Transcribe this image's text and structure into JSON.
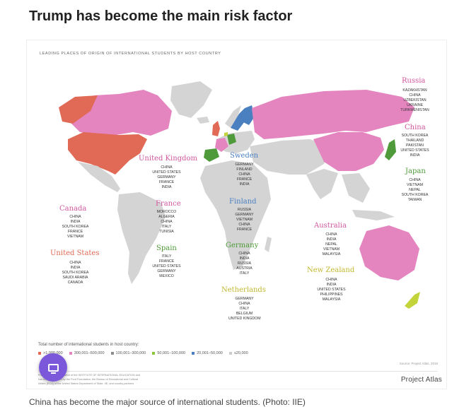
{
  "headline": "Trump has become the main risk factor",
  "figure": {
    "title": "LEADING PLACES OF ORIGIN OF INTERNATIONAL STUDENTS BY HOST COUNTRY",
    "source": "Source: Project Atlas, 2018",
    "logo": "Project Atlas",
    "footnote_lines": [
      "Project Atlas is an initiative of the INSTITUTE OF INTERNATIONAL EDUCATION and",
      "has been supported by the Ford Foundation, the Bureau of Educational and Cultural",
      "Affairs (ECA) of the United States Department of State, IIE, and country partners"
    ],
    "colors": {
      "c1": "#e06a55",
      "c2": "#e485c0",
      "c3": "#8c8c8c",
      "c4": "#8cc63e",
      "c5": "#4a7fc0",
      "c6": "#cccccc",
      "land": "#d4d4d4",
      "green": "#4f9a3a",
      "lime": "#c3d43a"
    }
  },
  "hosts": [
    {
      "name": "Russia",
      "color": "#e485c0",
      "origins": [
        "KAZAKHSTAN",
        "CHINA",
        "UZBEKISTAN",
        "UKRAINE",
        "TURKMENISTAN"
      ]
    },
    {
      "name": "China",
      "color": "#e485c0",
      "origins": [
        "SOUTH KOREA",
        "THAILAND",
        "PAKISTAN",
        "UNITED STATES",
        "INDIA"
      ]
    },
    {
      "name": "Japan",
      "color": "#4f9a3a",
      "origins": [
        "CHINA",
        "VIETNAM",
        "NEPAL",
        "SOUTH KOREA",
        "TAIWAN"
      ]
    },
    {
      "name": "United Kingdom",
      "color": "#e06a55",
      "origins": [
        "CHINA",
        "UNITED STATES",
        "GERMANY",
        "FRANCE",
        "INDIA"
      ]
    },
    {
      "name": "Sweden",
      "color": "#4a7fc0",
      "origins": [
        "GERMANY",
        "FINLAND",
        "CHINA",
        "FRANCE",
        "INDIA"
      ]
    },
    {
      "name": "Canada",
      "color": "#e485c0",
      "origins": [
        "CHINA",
        "INDIA",
        "SOUTH KOREA",
        "FRANCE",
        "VIETNAM"
      ]
    },
    {
      "name": "France",
      "color": "#e485c0",
      "origins": [
        "MOROCCO",
        "ALGERIA",
        "CHINA",
        "ITALY",
        "TUNISIA"
      ]
    },
    {
      "name": "Finland",
      "color": "#4a7fc0",
      "origins": [
        "RUSSIA",
        "GERMANY",
        "VIETNAM",
        "CHINA",
        "FRANCE"
      ]
    },
    {
      "name": "Australia",
      "color": "#e485c0",
      "origins": [
        "CHINA",
        "INDIA",
        "NEPAL",
        "VIETNAM",
        "MALAYSIA"
      ]
    },
    {
      "name": "Spain",
      "color": "#4f9a3a",
      "origins": [
        "ITALY",
        "FRANCE",
        "UNITED STATES",
        "GERMANY",
        "MEXICO"
      ]
    },
    {
      "name": "Germany",
      "color": "#4f9a3a",
      "origins": [
        "CHINA",
        "INDIA",
        "RUSSIA",
        "AUSTRIA",
        "ITALY"
      ]
    },
    {
      "name": "United States",
      "color": "#e06a55",
      "origins": [
        "CHINA",
        "INDIA",
        "SOUTH KOREA",
        "SAUDI ARABIA",
        "CANADA"
      ]
    },
    {
      "name": "New Zealand",
      "color": "#c3b830",
      "origins": [
        "CHINA",
        "INDIA",
        "UNITED STATES",
        "PHILIPPINES",
        "MALAYSIA"
      ]
    },
    {
      "name": "Netherlands",
      "color": "#c3b830",
      "origins": [
        "GERMANY",
        "CHINA",
        "ITALY",
        "BELGIUM",
        "UNITED KINGDOM"
      ]
    }
  ],
  "legend": {
    "title": "Total number of international students in host country:",
    "items": [
      {
        "label": ">1,000,000",
        "color": "#e06a55"
      },
      {
        "label": "300,001–500,000",
        "color": "#e485c0"
      },
      {
        "label": "100,001–300,000",
        "color": "#8c8c8c"
      },
      {
        "label": "50,001–100,000",
        "color": "#8cc63e"
      },
      {
        "label": "20,001–50,000",
        "color": "#4a7fc0"
      },
      {
        "label": "≤20,000",
        "color": "#cccccc"
      }
    ]
  },
  "caption": "China has become the major source of international students. (Photo: IIE)"
}
